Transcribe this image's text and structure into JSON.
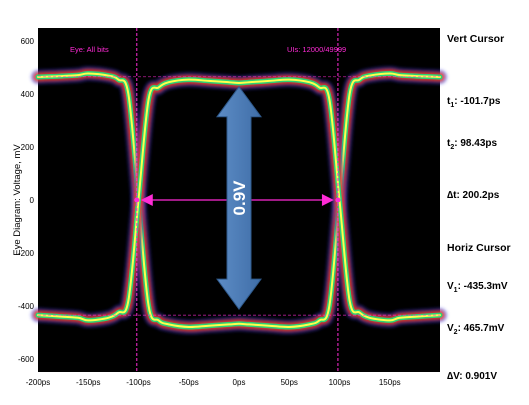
{
  "chart_data": {
    "type": "line",
    "title": "",
    "ylabel": "Eye Diagram: Voltage, mV",
    "xlabel": "",
    "xlim": [
      -200,
      200
    ],
    "ylim": [
      -650,
      650
    ],
    "x_ticks": [
      "-200ps",
      "-150ps",
      "-100ps",
      "-50ps",
      "0ps",
      "50ps",
      "100ps",
      "150ps"
    ],
    "x_tick_values": [
      -200,
      -150,
      -100,
      -50,
      0,
      50,
      100,
      150
    ],
    "y_ticks": [
      600,
      400,
      200,
      0,
      -200,
      -400,
      -600
    ],
    "annotations": {
      "eye_label": "Eye: All bits",
      "uis_label": "UIs: 12000/49999",
      "arrow_label": "0.9V"
    },
    "series": [
      {
        "x": [
          -200,
          -180,
          -160,
          -150,
          -130,
          -120,
          -110,
          -100,
          -90,
          -80,
          -70,
          -50,
          -30,
          -10,
          0,
          10,
          30,
          50,
          70,
          80,
          90,
          100,
          110,
          120,
          130,
          150,
          160,
          180,
          200
        ],
        "y": [
          465,
          468,
          472,
          478,
          470,
          455,
          400,
          0,
          -400,
          -455,
          -470,
          -480,
          -475,
          -470,
          -468,
          -470,
          -475,
          -480,
          -470,
          -455,
          -400,
          0,
          400,
          455,
          470,
          478,
          472,
          468,
          465
        ]
      },
      {
        "x": [
          -200,
          -180,
          -160,
          -150,
          -130,
          -120,
          -110,
          -100,
          -90,
          -80,
          -70,
          -50,
          -30,
          -10,
          0,
          10,
          30,
          50,
          70,
          80,
          90,
          100,
          110,
          120,
          130,
          150,
          160,
          180,
          200
        ],
        "y": [
          -435,
          -440,
          -445,
          -455,
          -445,
          -425,
          -380,
          0,
          380,
          425,
          445,
          455,
          450,
          445,
          442,
          445,
          450,
          455,
          445,
          425,
          380,
          0,
          -380,
          -425,
          -445,
          -455,
          -445,
          -440,
          -435
        ]
      }
    ],
    "cursors": {
      "vertical_ps": [
        -101.7,
        98.43
      ],
      "horizontal_mV": [
        -435.3,
        465.7
      ]
    }
  },
  "side_panel": {
    "vert_title": "Vert Cursor",
    "t1_main": "t",
    "t1_sub": "1",
    "t1_value": ": -101.7ps",
    "t2_main": "t",
    "t2_sub": "2",
    "t2_value": ": 98.43ps",
    "dt_label": "∆t: 200.2ps",
    "horiz_title": "Horiz Cursor",
    "v1_main": "V",
    "v1_sub": "1",
    "v1_value": ": -435.3mV",
    "v2_main": "V",
    "v2_sub": "2",
    "v2_value": ": 465.7mV",
    "dv_label": "∆V: 0.901V"
  },
  "colors": {
    "plot_bg": "#000000",
    "cursor_line": "#ff2bd6",
    "arrow_fill": "#4f7fb8",
    "trace_core": "#ffff4d",
    "trace_mid": "#22d97a",
    "trace_outer": "#ff3a1a",
    "trace_halo": "#3a39d6"
  }
}
